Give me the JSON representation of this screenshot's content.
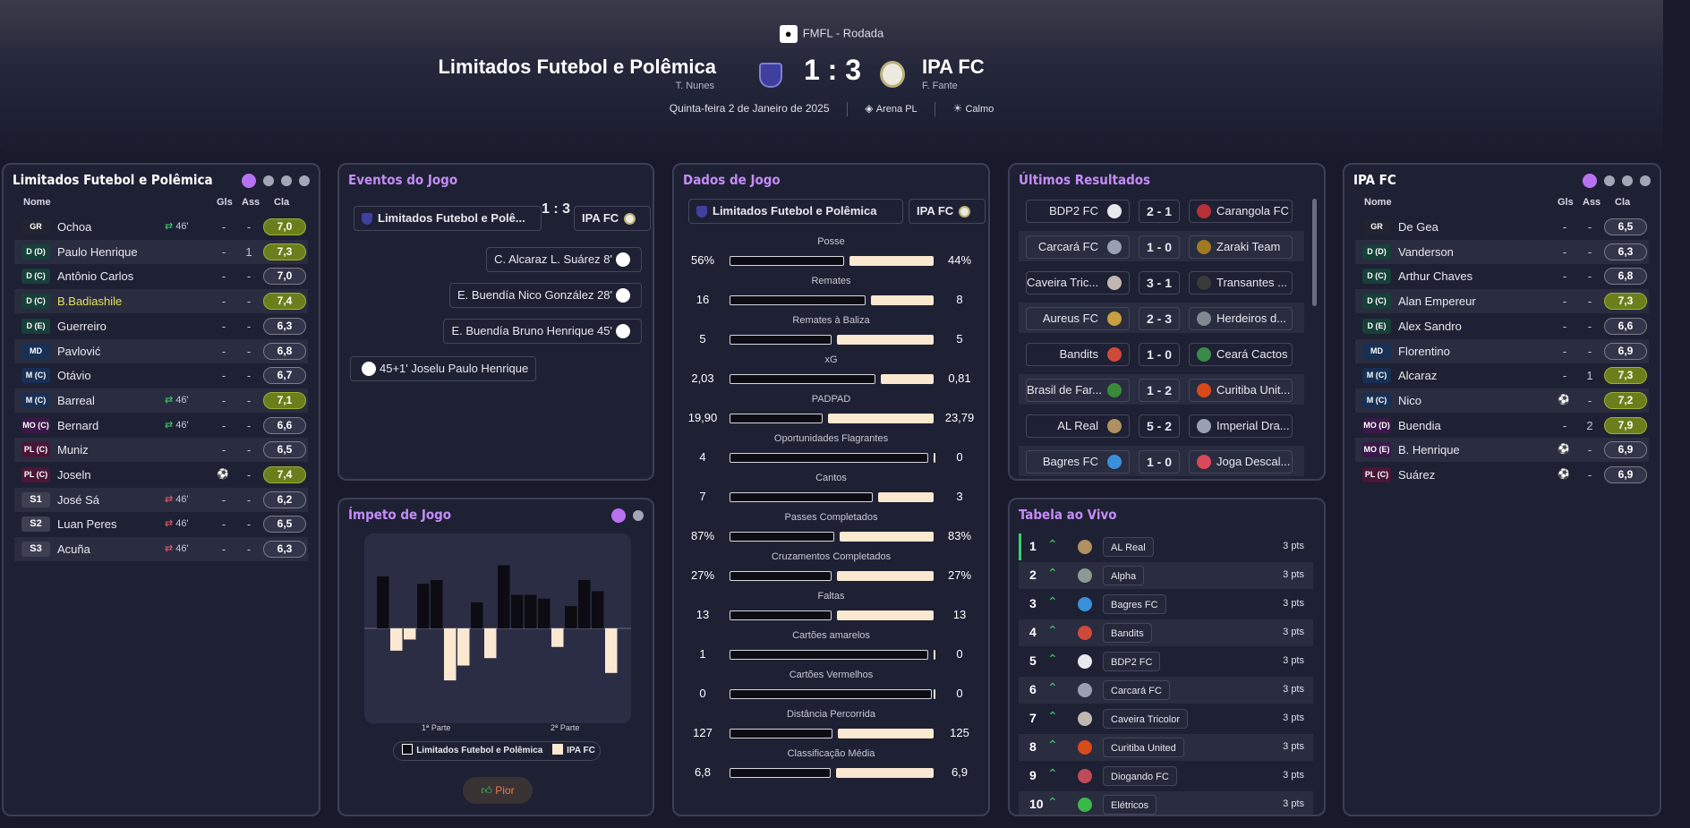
{
  "competition": {
    "name": "FMFL - Rodada"
  },
  "match": {
    "home_team": "Limitados Futebol e Polêmica",
    "home_manager": "T. Nunes",
    "away_team": "IPA FC",
    "away_manager": "F. Fante",
    "score": "1 : 3",
    "date": "Quinta-feira 2 de Janeiro de 2025",
    "venue": "Arena PL",
    "weather": "Calmo"
  },
  "home_lineup": {
    "title": "Limitados Futebol e Polêmica",
    "columns": {
      "name": "Nome",
      "goals": "Gls",
      "assists": "Ass",
      "rating": "Cla"
    },
    "players": [
      {
        "pos": "GR",
        "name": "Ochoa",
        "event": "46'",
        "event_type": "sub",
        "gls": "-",
        "ass": "-",
        "rating": "7,0",
        "good": true
      },
      {
        "pos": "D (D)",
        "name": "Paulo Henrique",
        "event": "",
        "gls": "-",
        "ass": "1",
        "rating": "7,3",
        "good": true
      },
      {
        "pos": "D (C)",
        "name": "Antônio Carlos",
        "event": "",
        "gls": "-",
        "ass": "-",
        "rating": "7,0",
        "good": false
      },
      {
        "pos": "D (C)",
        "name": "B.Badiashile",
        "event": "",
        "gls": "-",
        "ass": "-",
        "rating": "7,4",
        "good": true,
        "highlight": true
      },
      {
        "pos": "D (E)",
        "name": "Guerreiro",
        "event": "",
        "gls": "-",
        "ass": "-",
        "rating": "6,3",
        "good": false
      },
      {
        "pos": "MD",
        "name": "Pavlović",
        "event": "",
        "gls": "-",
        "ass": "-",
        "rating": "6,8",
        "good": false
      },
      {
        "pos": "M (C)",
        "name": "Otávio",
        "event": "",
        "gls": "-",
        "ass": "-",
        "rating": "6,7",
        "good": false
      },
      {
        "pos": "M (C)",
        "name": "Barreal",
        "event": "46'",
        "event_type": "sub",
        "gls": "-",
        "ass": "-",
        "rating": "7,1",
        "good": true
      },
      {
        "pos": "MO (C)",
        "name": "Bernard",
        "event": "46'",
        "event_type": "sub",
        "gls": "-",
        "ass": "-",
        "rating": "6,6",
        "good": false
      },
      {
        "pos": "PL (C)",
        "name": "Muniz",
        "event": "",
        "gls": "-",
        "ass": "-",
        "rating": "6,5",
        "good": false
      },
      {
        "pos": "PL (C)",
        "name": "Joseln",
        "event": "",
        "event_type": "goal",
        "gls": "",
        "ass": "-",
        "rating": "7,4",
        "good": true
      },
      {
        "pos": "S1",
        "name": "José Sá",
        "event": "46'",
        "event_type": "subout",
        "gls": "-",
        "ass": "-",
        "rating": "6,2",
        "good": false
      },
      {
        "pos": "S2",
        "name": "Luan Peres",
        "event": "46'",
        "event_type": "subout",
        "gls": "-",
        "ass": "-",
        "rating": "6,5",
        "good": false
      },
      {
        "pos": "S3",
        "name": "Acuña",
        "event": "46'",
        "event_type": "subout",
        "gls": "-",
        "ass": "-",
        "rating": "6,3",
        "good": false
      }
    ]
  },
  "events": {
    "title": "Eventos do Jogo",
    "home_team": "Limitados Futebol e Polê...",
    "score": "1 : 3",
    "away_team": "IPA FC",
    "list": [
      {
        "side": "away",
        "text": "C. Alcaraz  L. Suárez  8'"
      },
      {
        "side": "away",
        "text": "E. Buendía  Nico González  28'"
      },
      {
        "side": "away",
        "text": "E. Buendía  Bruno Henrique  45'"
      },
      {
        "side": "home",
        "text": "45+1'  Joselu  Paulo Henrique"
      }
    ]
  },
  "momentum": {
    "title": "Ímpeto de Jogo",
    "first_half": "1ª Parte",
    "second_half": "2ª Parte",
    "legend_home": "Limitados Futebol e Polêmica",
    "legend_away": "IPA FC",
    "button": "Pior"
  },
  "chart_data": {
    "type": "bar",
    "title": "Ímpeto de Jogo",
    "series": [
      {
        "name": "Limitados Futebol e Polêmica",
        "values": [
          7,
          0,
          0,
          6,
          6.5,
          0,
          0,
          3.5,
          0,
          8.5,
          4.5,
          4.5,
          4,
          0,
          3,
          6.5,
          5,
          0
        ]
      },
      {
        "name": "IPA FC",
        "values": [
          0,
          3,
          1.5,
          0,
          0,
          7,
          5,
          0,
          4,
          0,
          0,
          0,
          0,
          2.5,
          0,
          0,
          0,
          6
        ]
      }
    ]
  },
  "stats": {
    "title": "Dados de Jogo",
    "home_team": "Limitados Futebol e Polêmica",
    "away_team": "IPA FC",
    "rows": [
      {
        "label": "Posse",
        "home": "56%",
        "away": "44%",
        "hv": 56,
        "av": 44
      },
      {
        "label": "Remates",
        "home": "16",
        "away": "8",
        "hv": 16,
        "av": 8
      },
      {
        "label": "Remates à Baliza",
        "home": "5",
        "away": "5",
        "hv": 5,
        "av": 5
      },
      {
        "label": "xG",
        "home": "2,03",
        "away": "0,81",
        "hv": 2.03,
        "av": 0.81
      },
      {
        "label": "PADPAD",
        "home": "19,90",
        "away": "23,79",
        "hv": 19.9,
        "av": 23.79
      },
      {
        "label": "Oportunidades Flagrantes",
        "home": "4",
        "away": "0",
        "hv": 4,
        "av": 0
      },
      {
        "label": "Cantos",
        "home": "7",
        "away": "3",
        "hv": 7,
        "av": 3
      },
      {
        "label": "Passes Completados",
        "home": "87%",
        "away": "83%",
        "hv": 87,
        "av": 83
      },
      {
        "label": "Cruzamentos Completados",
        "home": "27%",
        "away": "27%",
        "hv": 27,
        "av": 27
      },
      {
        "label": "Faltas",
        "home": "13",
        "away": "13",
        "hv": 13,
        "av": 13
      },
      {
        "label": "Cartões amarelos",
        "home": "1",
        "away": "0",
        "hv": 1,
        "av": 0
      },
      {
        "label": "Cartões Vermelhos",
        "home": "0",
        "away": "0",
        "hv": 0,
        "av": 0
      },
      {
        "label": "Distância Percorrida",
        "home": "127",
        "away": "125",
        "hv": 127,
        "av": 125
      },
      {
        "label": "Classificação Média",
        "home": "6,8",
        "away": "6,9",
        "hv": 6.8,
        "av": 6.9
      }
    ]
  },
  "results": {
    "title": "Últimos Resultados",
    "list": [
      {
        "home": "BDP2 FC",
        "score": "2 - 1",
        "away": "Carangola FC",
        "hc": "#e8e8ee",
        "ac": "#b8303a"
      },
      {
        "home": "Carcará FC",
        "score": "1 - 0",
        "away": "Zaraki Team",
        "hc": "#9aa0b0",
        "ac": "#a07a20"
      },
      {
        "home": "Caveira Tric...",
        "score": "3 - 1",
        "away": "Transantes ...",
        "hc": "#c0b8b0",
        "ac": "#3a3a3a"
      },
      {
        "home": "Aureus FC",
        "score": "2 - 3",
        "away": "Herdeiros d...",
        "hc": "#c8a040",
        "ac": "#808890"
      },
      {
        "home": "Bandits",
        "score": "1 - 0",
        "away": "Ceará Cactos",
        "hc": "#d04a3a",
        "ac": "#3a8a4a"
      },
      {
        "home": "Brasil de Far...",
        "score": "1 - 2",
        "away": "Curitiba Unit...",
        "hc": "#3a8a3a",
        "ac": "#d84a1a"
      },
      {
        "home": "AL Real",
        "score": "5 - 2",
        "away": "Imperial Dra...",
        "hc": "#b09060",
        "ac": "#9aa0b0"
      },
      {
        "home": "Bagres FC",
        "score": "1 - 0",
        "away": "Joga Descal...",
        "hc": "#3a90d8",
        "ac": "#d84a5a"
      }
    ]
  },
  "table": {
    "title": "Tabela ao Vivo",
    "rows": [
      {
        "pos": "1",
        "team": "AL Real",
        "pts": "3 pts",
        "c": "#b09060"
      },
      {
        "pos": "2",
        "team": "Alpha",
        "pts": "3 pts",
        "c": "#8a9a90"
      },
      {
        "pos": "3",
        "team": "Bagres FC",
        "pts": "3 pts",
        "c": "#3a90d8"
      },
      {
        "pos": "4",
        "team": "Bandits",
        "pts": "3 pts",
        "c": "#d04a3a"
      },
      {
        "pos": "5",
        "team": "BDP2 FC",
        "pts": "3 pts",
        "c": "#e8e8ee"
      },
      {
        "pos": "6",
        "team": "Carcará FC",
        "pts": "3 pts",
        "c": "#9aa0b0"
      },
      {
        "pos": "7",
        "team": "Caveira Tricolor",
        "pts": "3 pts",
        "c": "#c0b8b0"
      },
      {
        "pos": "8",
        "team": "Curitiba United",
        "pts": "3 pts",
        "c": "#d84a1a"
      },
      {
        "pos": "9",
        "team": "Diogando FC",
        "pts": "3 pts",
        "c": "#c04a5a"
      },
      {
        "pos": "10",
        "team": "Elétricos",
        "pts": "3 pts",
        "c": "#3ab84a"
      }
    ]
  },
  "away_lineup": {
    "title": "IPA FC",
    "columns": {
      "name": "Nome",
      "goals": "Gls",
      "assists": "Ass",
      "rating": "Cla"
    },
    "players": [
      {
        "pos": "GR",
        "name": "De Gea",
        "event": "",
        "gls": "-",
        "ass": "-",
        "rating": "6,5",
        "good": false
      },
      {
        "pos": "D (D)",
        "name": "Vanderson",
        "event": "",
        "gls": "-",
        "ass": "-",
        "rating": "6,3",
        "good": false
      },
      {
        "pos": "D (C)",
        "name": "Arthur Chaves",
        "event": "",
        "gls": "-",
        "ass": "-",
        "rating": "6,8",
        "good": false
      },
      {
        "pos": "D (C)",
        "name": "Alan Empereur",
        "event": "",
        "gls": "-",
        "ass": "-",
        "rating": "7,3",
        "good": true
      },
      {
        "pos": "D (E)",
        "name": "Alex Sandro",
        "event": "",
        "gls": "-",
        "ass": "-",
        "rating": "6,6",
        "good": false
      },
      {
        "pos": "MD",
        "name": "Florentino",
        "event": "",
        "gls": "-",
        "ass": "-",
        "rating": "6,9",
        "good": false
      },
      {
        "pos": "M (C)",
        "name": "Alcaraz",
        "event": "",
        "gls": "-",
        "ass": "1",
        "rating": "7,3",
        "good": true
      },
      {
        "pos": "M (C)",
        "name": "Nico",
        "event": "",
        "event_type": "goal",
        "gls": "",
        "ass": "-",
        "rating": "7,2",
        "good": true
      },
      {
        "pos": "MO (D)",
        "name": "Buendia",
        "event": "",
        "gls": "-",
        "ass": "2",
        "rating": "7,9",
        "good": true
      },
      {
        "pos": "MO (E)",
        "name": "B. Henrique",
        "event": "",
        "event_type": "goal",
        "gls": "",
        "ass": "-",
        "rating": "6,9",
        "good": false
      },
      {
        "pos": "PL (C)",
        "name": "Suárez",
        "event": "",
        "event_type": "goal",
        "gls": "",
        "ass": "-",
        "rating": "6,9",
        "good": false
      }
    ]
  }
}
